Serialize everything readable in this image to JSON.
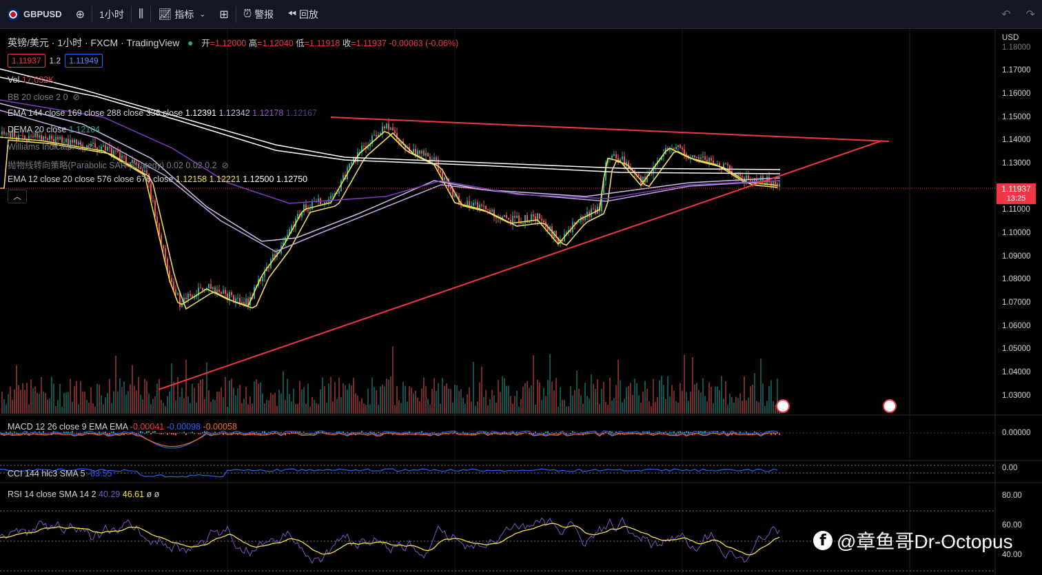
{
  "toolbar": {
    "symbol": "GBPUSD",
    "interval": "1小时",
    "indicators_label": "指标",
    "alert_label": "警报",
    "replay_label": "回放"
  },
  "header": {
    "title": "英镑/美元 · 1小时 · FXCM · TradingView",
    "open_label": "开",
    "open": "=1.12000",
    "high_label": "高",
    "high": "=1.12040",
    "low_label": "低",
    "low": "=1.11918",
    "close_label": "收",
    "close": "=1.11937",
    "change": "-0.00063 (-0.06%)",
    "sell_price": "1.11937",
    "spread": "1.2",
    "buy_price": "1.11949"
  },
  "indicators": {
    "vol_name": "Vol",
    "vol_value": "17.032K",
    "bb": "BB 20 close 2 0",
    "ema1_name": "EMA 144 close 169 close 288 close 338 close",
    "ema1_v1": "1.12391",
    "ema1_v2": "1.12342",
    "ema1_v3": "1.12178",
    "ema1_v4": "1.12167",
    "dema_name": "DEMA 20 close",
    "dema_value": "1.12104",
    "williams": "Williams Indicator 2",
    "psar": "抛物线转向策略(Parabolic SAR Strategy) 0.02 0.02 0.2",
    "ema2_name": "EMA 12 close 20 close 576 close 676 close",
    "ema2_v1": "1.12158",
    "ema2_v2": "1.12221",
    "ema2_v3": "1.12500",
    "ema2_v4": "1.12750"
  },
  "macd": {
    "name": "MACD 12 26 close 9 EMA EMA",
    "v1": "-0.00041",
    "v2": "-0.00098",
    "v3": "-0.00058",
    "axis": "0.00000"
  },
  "cci": {
    "name": "CCI 144 hlc3 SMA 5",
    "value": "-83.55",
    "axis": "0.00"
  },
  "rsi": {
    "name": "RSI 14 close SMA 14 2",
    "v1": "40.29",
    "v2": "46.61",
    "v3": "ø ø",
    "axis": [
      "80.00",
      "60.00",
      "40.00"
    ]
  },
  "price_axis": {
    "currency": "USD",
    "ticks": [
      "1.18000",
      "1.17000",
      "1.16000",
      "1.15000",
      "1.14000",
      "1.13000",
      "1.11000",
      "1.10000",
      "1.09000",
      "1.08000",
      "1.07000",
      "1.06000",
      "1.05000",
      "1.04000",
      "1.03000"
    ],
    "last_price": "1.11937",
    "countdown": "13:25"
  },
  "watermark": "@章鱼哥Dr-Octopus",
  "colors": {
    "up": "#26a69a",
    "down": "#ef5350",
    "trendline": "#f23645",
    "ema_yellow": "#f5e342",
    "ema_white": "#ffffff",
    "ema_purple": "#7e3fc0"
  }
}
